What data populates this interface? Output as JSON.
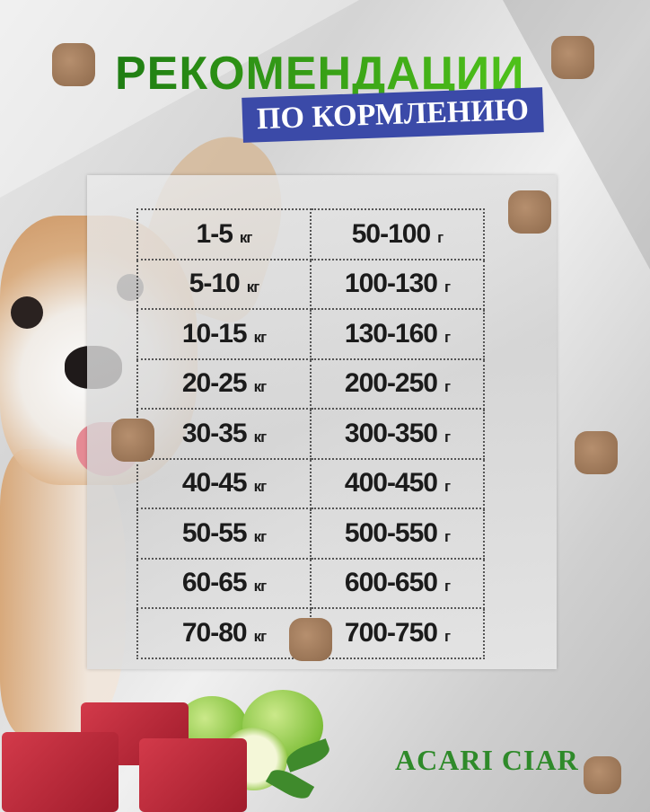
{
  "header": {
    "title": "РЕКОМЕНДАЦИИ",
    "subtitle": "ПО КОРМЛЕНИЮ"
  },
  "feeding_table": {
    "columns": [
      "dog_weight",
      "daily_portion"
    ],
    "rows": [
      {
        "weight": "1-5",
        "weight_unit": "кг",
        "portion": "50-100",
        "portion_unit": "г"
      },
      {
        "weight": "5-10",
        "weight_unit": "кг",
        "portion": "100-130",
        "portion_unit": "г"
      },
      {
        "weight": "10-15",
        "weight_unit": "кг",
        "portion": "130-160",
        "portion_unit": "г"
      },
      {
        "weight": "20-25",
        "weight_unit": "кг",
        "portion": "200-250",
        "portion_unit": "г"
      },
      {
        "weight": "30-35",
        "weight_unit": "кг",
        "portion": "300-350",
        "portion_unit": "г"
      },
      {
        "weight": "40-45",
        "weight_unit": "кг",
        "portion": "400-450",
        "portion_unit": "г"
      },
      {
        "weight": "50-55",
        "weight_unit": "кг",
        "portion": "500-550",
        "portion_unit": "г"
      },
      {
        "weight": "60-65",
        "weight_unit": "кг",
        "portion": "600-650",
        "portion_unit": "г"
      },
      {
        "weight": "70-80",
        "weight_unit": "кг",
        "portion": "700-750",
        "portion_unit": "г"
      }
    ]
  },
  "brand": "ACARI CIAR",
  "colors": {
    "title_green": "#2f9a1a",
    "subtitle_band": "#3b4aa8",
    "brand_green": "#2f8a2a",
    "text_dark": "#1b1b1b"
  }
}
